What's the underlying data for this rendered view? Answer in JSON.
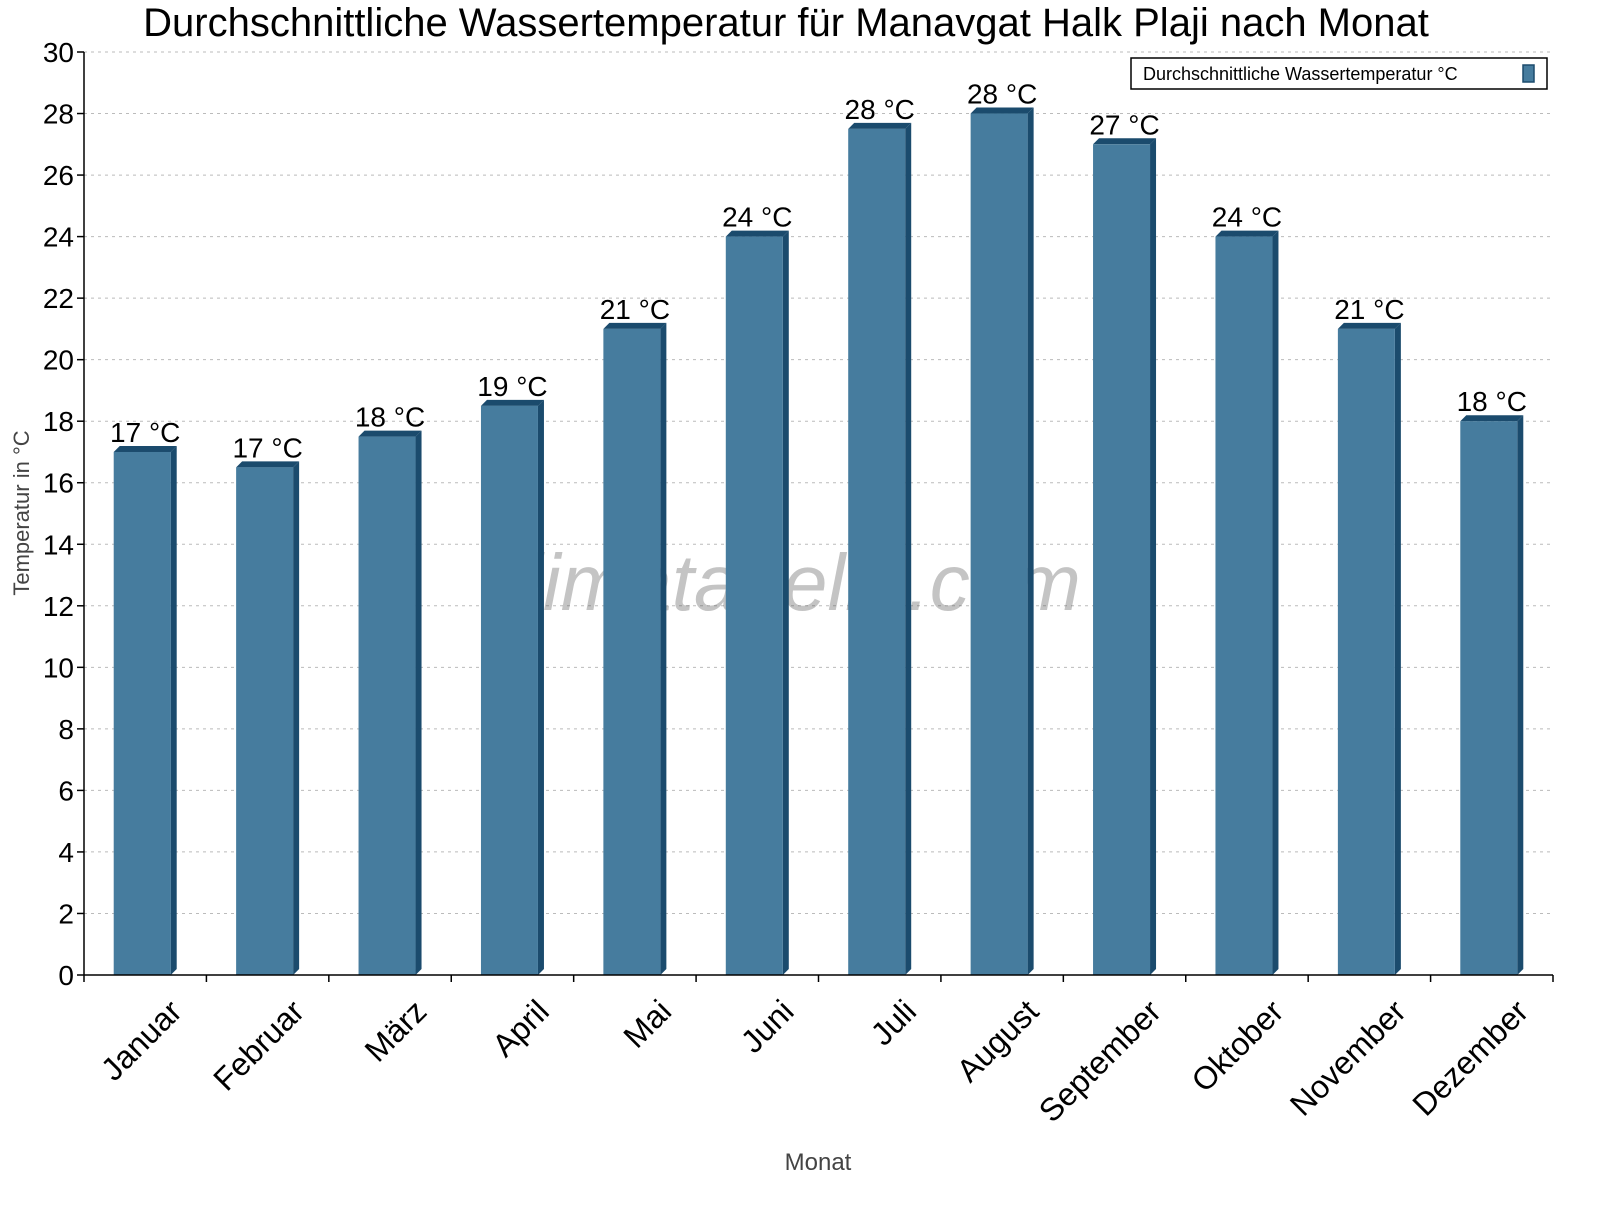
{
  "chart_data": {
    "type": "bar",
    "title": "Durchschnittliche Wassertemperatur für Manavgat Halk Plaji nach Monat",
    "xlabel": "Monat",
    "ylabel": "Temperatur in °C",
    "ylim": [
      0,
      30
    ],
    "yticks": [
      0,
      2,
      4,
      6,
      8,
      10,
      12,
      14,
      16,
      18,
      20,
      22,
      24,
      26,
      28,
      30
    ],
    "grid": true,
    "legend_position": "top-right",
    "categories": [
      "Januar",
      "Februar",
      "März",
      "April",
      "Mai",
      "Juni",
      "Juli",
      "August",
      "September",
      "Oktober",
      "November",
      "Dezember"
    ],
    "series": [
      {
        "name": "Durchschnittliche Wassertemperatur °C",
        "values": [
          17,
          16.5,
          17.5,
          18.5,
          21,
          24,
          27.5,
          28,
          27,
          24,
          21,
          18
        ],
        "labels": [
          "17 °C",
          "17 °C",
          "18 °C",
          "19 °C",
          "21 °C",
          "24 °C",
          "28 °C",
          "28 °C",
          "27 °C",
          "24 °C",
          "21 °C",
          "18 °C"
        ],
        "color": "#467c9e",
        "shade_color": "#1b4b6d"
      }
    ],
    "watermark": "klimatabelle.com"
  }
}
